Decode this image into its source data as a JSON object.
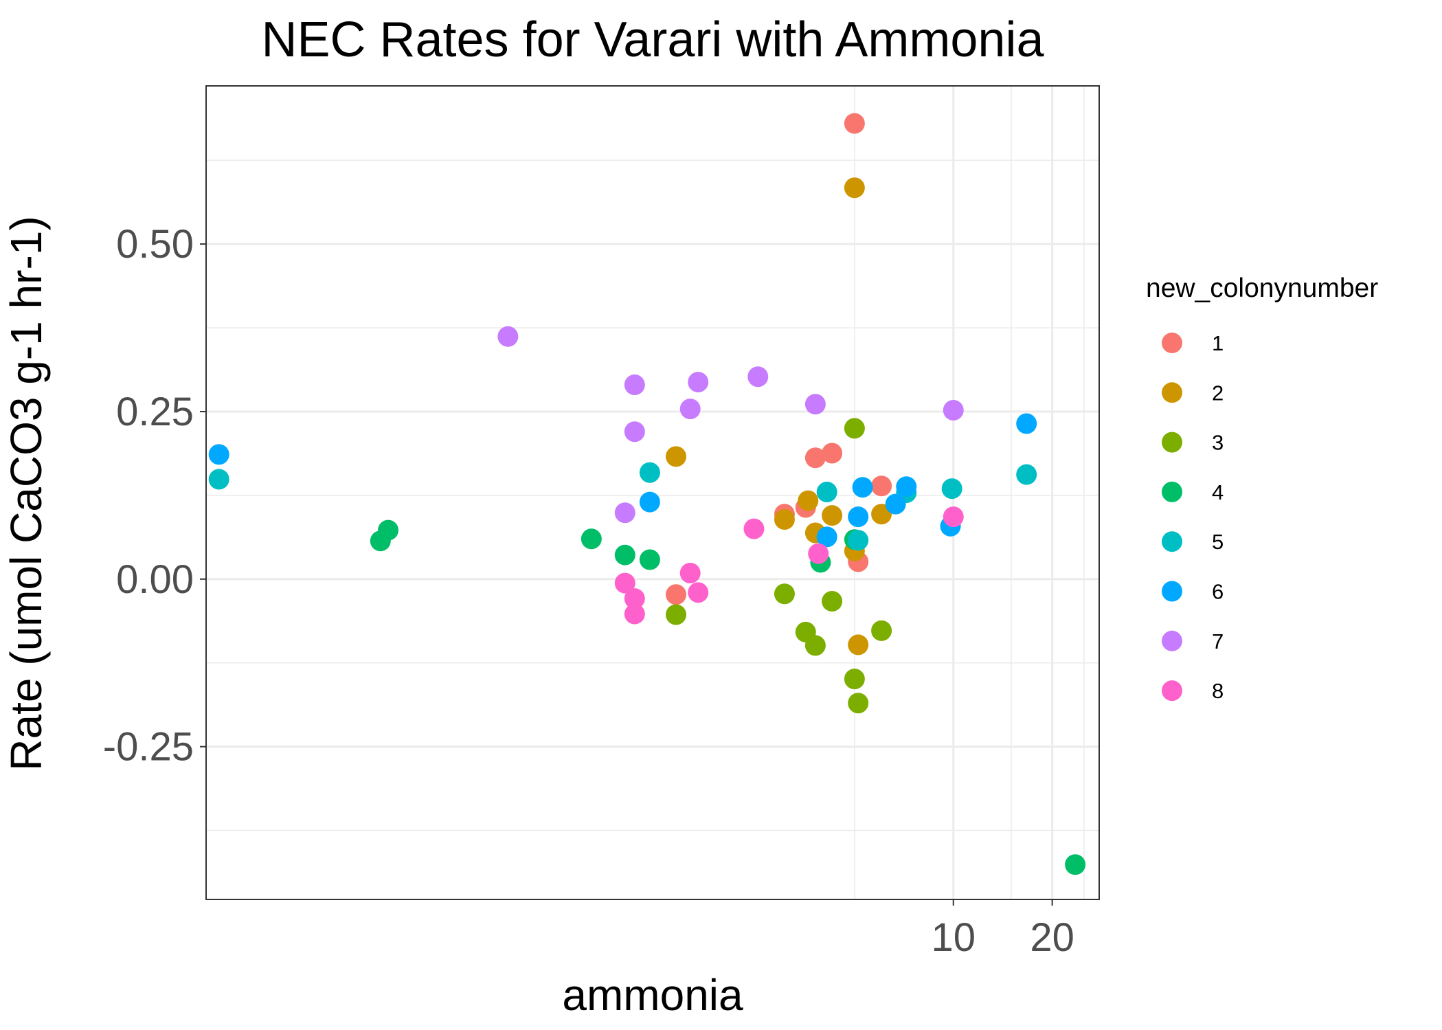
{
  "chart_data": {
    "type": "scatter",
    "title": "NEC Rates for Varari with Ammonia",
    "xlabel": "ammonia",
    "ylabel": "Rate (umol CaCO3 g-1 hr-1)",
    "x_scale": "log10",
    "xlim": [
      0.053,
      27.8
    ],
    "ylim": [
      -0.478,
      0.736
    ],
    "x_ticks": [
      10,
      20
    ],
    "x_tick_labels": [
      "10",
      "20"
    ],
    "y_ticks": [
      -0.25,
      0,
      0.25,
      0.5
    ],
    "y_tick_labels": [
      "-0.25",
      "0.00",
      "0.25",
      "0.50"
    ],
    "grid": true,
    "legend": {
      "title": "new_colonynumber",
      "position": "right"
    },
    "series": [
      {
        "name": "1",
        "color": "#F8766D",
        "points": [
          [
            5.0,
            0.68
          ],
          [
            4.27,
            0.188
          ],
          [
            3.8,
            0.181
          ],
          [
            6.04,
            0.139
          ],
          [
            3.06,
            0.097
          ],
          [
            3.55,
            0.107
          ],
          [
            5.13,
            0.026
          ],
          [
            1.43,
            -0.023
          ]
        ]
      },
      {
        "name": "2",
        "color": "#CD9600",
        "points": [
          [
            5.0,
            0.584
          ],
          [
            1.43,
            0.183
          ],
          [
            3.61,
            0.117
          ],
          [
            4.27,
            0.095
          ],
          [
            3.06,
            0.089
          ],
          [
            6.04,
            0.097
          ],
          [
            3.8,
            0.069
          ],
          [
            5.0,
            0.042
          ],
          [
            5.13,
            -0.098
          ]
        ]
      },
      {
        "name": "3",
        "color": "#7CAE00",
        "points": [
          [
            5.0,
            0.225
          ],
          [
            3.06,
            -0.022
          ],
          [
            4.27,
            -0.033
          ],
          [
            3.55,
            -0.079
          ],
          [
            3.8,
            -0.099
          ],
          [
            6.04,
            -0.077
          ],
          [
            5.0,
            -0.149
          ],
          [
            5.13,
            -0.185
          ],
          [
            1.43,
            -0.053
          ]
        ]
      },
      {
        "name": "4",
        "color": "#00BE67",
        "points": [
          [
            0.18,
            0.057
          ],
          [
            0.19,
            0.073
          ],
          [
            0.79,
            0.06
          ],
          [
            1.0,
            0.036
          ],
          [
            1.19,
            0.029
          ],
          [
            3.94,
            0.025
          ],
          [
            5.0,
            0.059
          ],
          [
            23.5,
            -0.426
          ]
        ]
      },
      {
        "name": "5",
        "color": "#00BFC4",
        "points": [
          [
            0.058,
            0.149
          ],
          [
            1.19,
            0.159
          ],
          [
            4.12,
            0.13
          ],
          [
            7.19,
            0.129
          ],
          [
            9.9,
            0.135
          ],
          [
            16.7,
            0.156
          ],
          [
            5.13,
            0.058
          ]
        ]
      },
      {
        "name": "6",
        "color": "#00A9FF",
        "points": [
          [
            0.058,
            0.186
          ],
          [
            1.19,
            0.115
          ],
          [
            4.12,
            0.063
          ],
          [
            5.29,
            0.137
          ],
          [
            5.13,
            0.093
          ],
          [
            6.67,
            0.112
          ],
          [
            7.19,
            0.138
          ],
          [
            9.8,
            0.079
          ],
          [
            16.7,
            0.232
          ]
        ]
      },
      {
        "name": "7",
        "color": "#C77CFF",
        "points": [
          [
            0.44,
            0.362
          ],
          [
            1.07,
            0.29
          ],
          [
            1.67,
            0.294
          ],
          [
            2.54,
            0.302
          ],
          [
            1.58,
            0.254
          ],
          [
            3.8,
            0.261
          ],
          [
            1.07,
            0.22
          ],
          [
            1.0,
            0.099
          ],
          [
            10.0,
            0.252
          ]
        ]
      },
      {
        "name": "8",
        "color": "#FF61CC",
        "points": [
          [
            1.0,
            -0.006
          ],
          [
            1.07,
            -0.029
          ],
          [
            1.07,
            -0.052
          ],
          [
            1.58,
            0.009
          ],
          [
            1.67,
            -0.02
          ],
          [
            2.47,
            0.075
          ],
          [
            3.88,
            0.038
          ],
          [
            10.0,
            0.093
          ]
        ]
      }
    ]
  }
}
